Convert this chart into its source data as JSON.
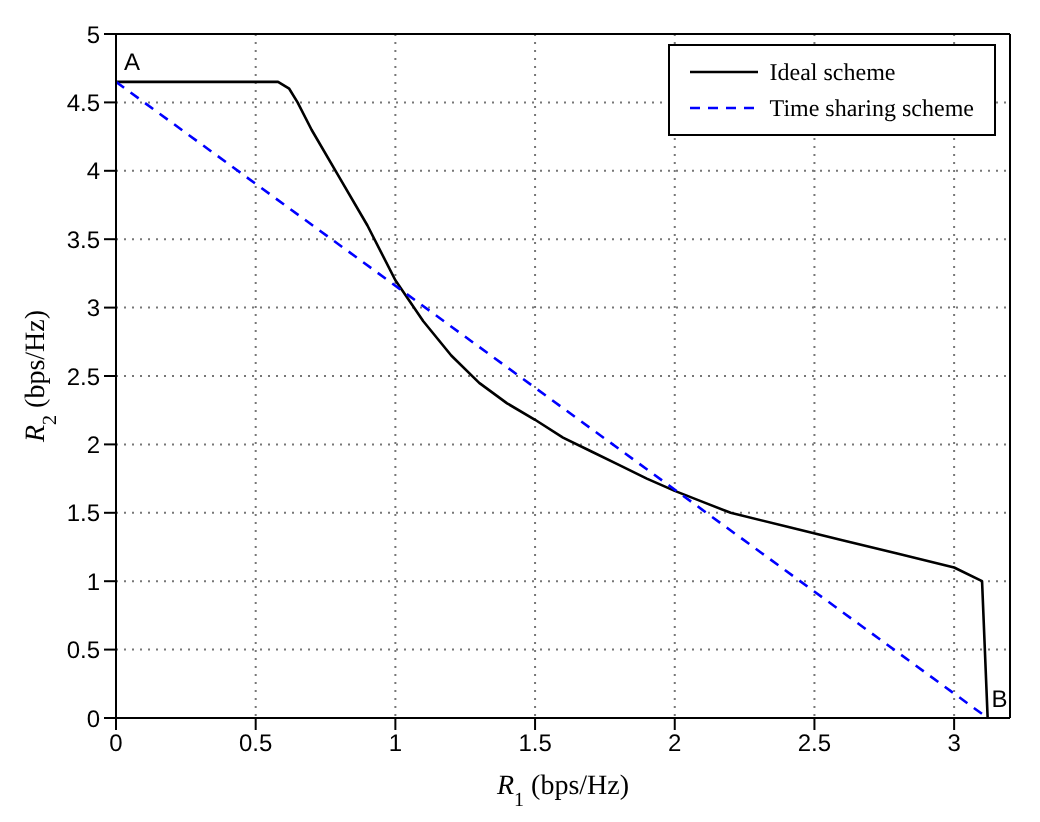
{
  "chart_data": {
    "type": "line",
    "xlabel": "R$_{1}$ (bps/Hz)",
    "ylabel": "R$_{2}$ (bps/Hz)",
    "xlim": [
      0,
      3.2
    ],
    "xticks": [
      0,
      0.5,
      1,
      1.5,
      2,
      2.5,
      3
    ],
    "ylim": [
      0,
      5
    ],
    "yticks": [
      0,
      0.5,
      1,
      1.5,
      2,
      2.5,
      3,
      3.5,
      4,
      4.5,
      5
    ],
    "grid": true,
    "legend": "top right",
    "marker": "none",
    "series": [
      {
        "name": "Ideal scheme",
        "color": "#000000",
        "line_style": "solid",
        "x": [
          0,
          0.58,
          0.62,
          0.65,
          0.7,
          0.8,
          0.9,
          1.0,
          1.1,
          1.2,
          1.3,
          1.4,
          1.5,
          1.6,
          1.7,
          1.8,
          1.9,
          2.0,
          2.1,
          2.2,
          2.4,
          2.6,
          2.8,
          3.0,
          3.1,
          3.12
        ],
        "values": [
          4.65,
          4.65,
          4.6,
          4.5,
          4.3,
          3.95,
          3.6,
          3.2,
          2.9,
          2.65,
          2.45,
          2.3,
          2.18,
          2.05,
          1.95,
          1.85,
          1.75,
          1.66,
          1.58,
          1.5,
          1.4,
          1.3,
          1.2,
          1.1,
          1.0,
          0
        ]
      },
      {
        "name": "Time sharing scheme",
        "color": "#0000ff",
        "line_style": "dashed",
        "x": [
          0,
          3.12
        ],
        "values": [
          4.65,
          0
        ]
      }
    ],
    "annotations": [
      {
        "text": "A",
        "x": 0,
        "y": 4.65
      },
      {
        "text": "B",
        "x": 3.12,
        "y": 0
      }
    ]
  }
}
